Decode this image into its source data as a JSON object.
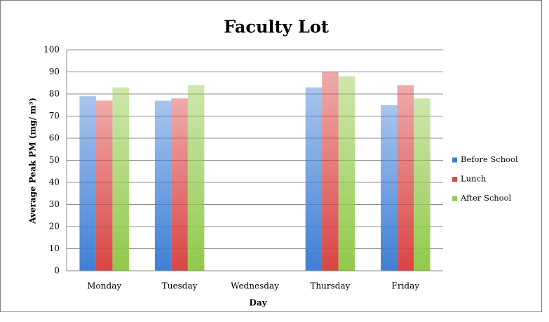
{
  "chart_data": {
    "type": "bar",
    "title": "Faculty Lot",
    "x_label": "Day",
    "y_label": "Average Peak PM (mg/ m³)",
    "categories": [
      "Monday",
      "Tuesday",
      "Wednesday",
      "Thursday",
      "Friday"
    ],
    "series": [
      {
        "name": "Before School",
        "color": "#3f7fd6",
        "values": [
          79,
          77,
          null,
          83,
          75
        ]
      },
      {
        "name": "Lunch",
        "color": "#d94444",
        "values": [
          77,
          78,
          null,
          90,
          84
        ]
      },
      {
        "name": "After School",
        "color": "#92c94a",
        "values": [
          83,
          84,
          null,
          88,
          78
        ]
      }
    ],
    "ylim": [
      0,
      100
    ],
    "yticks": [
      0,
      10,
      20,
      30,
      40,
      50,
      60,
      70,
      80,
      90,
      100
    ],
    "grid": true,
    "legend": "right"
  }
}
